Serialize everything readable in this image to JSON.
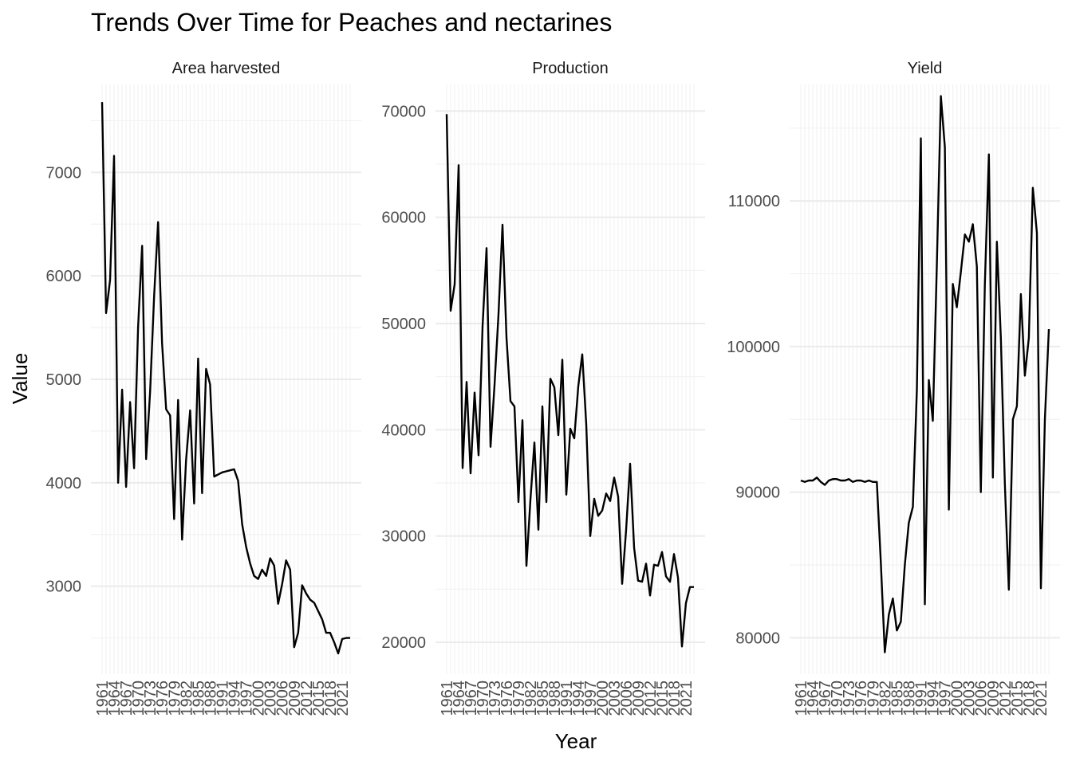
{
  "chart_data": {
    "type": "line",
    "title": "Trends Over Time for Peaches and nectarines",
    "xlabel": "Year",
    "ylabel": "Value",
    "grid": true,
    "legend": "none",
    "x_tick_labels": [
      "1961",
      "1964",
      "1967",
      "1970",
      "1973",
      "1976",
      "1979",
      "1982",
      "1985",
      "1988",
      "1991",
      "1994",
      "1997",
      "2000",
      "2003",
      "2006",
      "2009",
      "2012",
      "2015",
      "2018",
      "2021"
    ],
    "years": [
      1961,
      1962,
      1963,
      1964,
      1965,
      1966,
      1967,
      1968,
      1969,
      1970,
      1971,
      1972,
      1973,
      1974,
      1975,
      1976,
      1977,
      1978,
      1979,
      1980,
      1981,
      1982,
      1983,
      1984,
      1985,
      1986,
      1987,
      1988,
      1989,
      1990,
      1991,
      1992,
      1993,
      1994,
      1995,
      1996,
      1997,
      1998,
      1999,
      2000,
      2001,
      2002,
      2003,
      2004,
      2005,
      2006,
      2007,
      2008,
      2009,
      2010,
      2011,
      2012,
      2013,
      2014,
      2015,
      2016,
      2017,
      2018,
      2019,
      2020,
      2021,
      2022,
      2023
    ],
    "panels": [
      {
        "name": "Area harvested",
        "ylim": [
          2150,
          7850
        ],
        "y_ticks": [
          3000,
          4000,
          5000,
          6000,
          7000
        ],
        "values": [
          7680,
          5640,
          5960,
          7160,
          4000,
          4900,
          3960,
          4780,
          4140,
          5500,
          6290,
          4230,
          4880,
          5800,
          6520,
          5350,
          4710,
          4650,
          3650,
          4800,
          3450,
          4220,
          4700,
          3800,
          5200,
          3900,
          5100,
          4950,
          4060,
          4080,
          4100,
          4110,
          4120,
          4130,
          4020,
          3600,
          3380,
          3220,
          3100,
          3070,
          3160,
          3100,
          3270,
          3200,
          2830,
          3020,
          3250,
          3160,
          2410,
          2550,
          3010,
          2930,
          2870,
          2840,
          2760,
          2680,
          2550,
          2550,
          2460,
          2350,
          2490,
          2500,
          2500
        ]
      },
      {
        "name": "Production",
        "ylim": [
          17000,
          72500
        ],
        "y_ticks": [
          20000,
          30000,
          40000,
          50000,
          60000,
          70000
        ],
        "values": [
          69700,
          51200,
          53700,
          64900,
          36400,
          44500,
          35900,
          43500,
          37600,
          49700,
          57100,
          38400,
          44200,
          50900,
          59300,
          48700,
          42700,
          42200,
          33200,
          40900,
          27200,
          33400,
          38800,
          30600,
          42200,
          33200,
          44800,
          44000,
          39500,
          46600,
          33900,
          40100,
          39200,
          44100,
          47100,
          40500,
          30000,
          33500,
          31900,
          32400,
          34000,
          33300,
          35500,
          33700,
          25500,
          30600,
          36800,
          28900,
          25800,
          25700,
          27400,
          24400,
          27300,
          27200,
          28500,
          26200,
          25700,
          28300,
          26100,
          19600,
          23700,
          25200,
          25200
        ]
      },
      {
        "name": "Yield",
        "ylim": [
          77500,
          118000
        ],
        "y_ticks": [
          80000,
          90000,
          100000,
          110000
        ],
        "values": [
          90800,
          90700,
          90800,
          90800,
          91000,
          90700,
          90500,
          90800,
          90900,
          90900,
          90800,
          90800,
          90900,
          90700,
          90800,
          90800,
          90700,
          90800,
          90700,
          90700,
          85200,
          79000,
          81600,
          82700,
          80500,
          81100,
          85000,
          87900,
          89000,
          97000,
          114300,
          82300,
          97700,
          94900,
          105500,
          117200,
          113700,
          88800,
          104300,
          102700,
          105100,
          107700,
          107200,
          108400,
          105500,
          90000,
          104200,
          113200,
          91000,
          107200,
          100600,
          90600,
          83300,
          95000,
          95900,
          103600,
          98000,
          100600,
          110900,
          107800,
          83400,
          95000,
          101200
        ]
      }
    ]
  }
}
